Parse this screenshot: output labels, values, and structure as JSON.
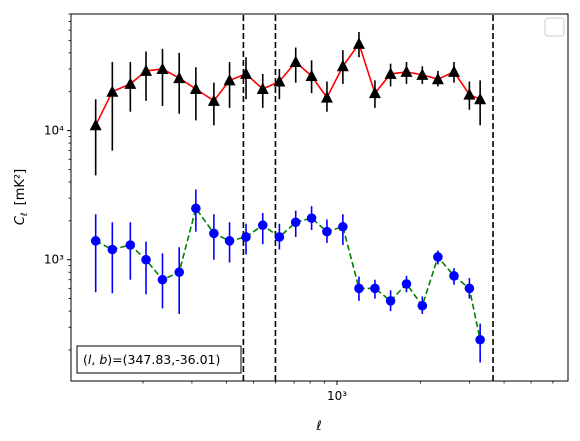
{
  "chart_data": {
    "type": "line",
    "xscale": "log",
    "yscale": "log",
    "xlim": [
      110,
      6800
    ],
    "ylim": [
      115,
      80000
    ],
    "xlabel_symbol": "ℓ",
    "ylabel_symbol": "C",
    "ylabel_subscript": "ℓ",
    "ylabel_unit": "[mK²]",
    "legend": {
      "location": "upper right",
      "entries": []
    },
    "annotation": {
      "text": "(l, b)=(347.83,-36.01)",
      "location": "lower left",
      "boxed": true
    },
    "x_ticks": [
      {
        "value": 1000,
        "label": "10³"
      }
    ],
    "y_ticks": [
      {
        "value": 1000,
        "label": "10³"
      },
      {
        "value": 10000,
        "label": "10⁴"
      }
    ],
    "vertical_lines": [
      {
        "x": 460,
        "style": "dashed",
        "color": "#000000"
      },
      {
        "x": 600,
        "style": "dashed",
        "color": "#000000"
      },
      {
        "x": 3650,
        "style": "dashed",
        "color": "#000000"
      }
    ],
    "series": [
      {
        "line_color": "#ff0000",
        "line_style": "solid",
        "marker": "triangle",
        "marker_color": "#000000",
        "points": [
          {
            "x": 135,
            "y": 11000,
            "lo": 4500,
            "hi": 17500
          },
          {
            "x": 155,
            "y": 20000,
            "lo": 7000,
            "hi": 34000
          },
          {
            "x": 180,
            "y": 23000,
            "lo": 14000,
            "hi": 34000
          },
          {
            "x": 205,
            "y": 29000,
            "lo": 17000,
            "hi": 41000
          },
          {
            "x": 235,
            "y": 30000,
            "lo": 15500,
            "hi": 43000
          },
          {
            "x": 270,
            "y": 25500,
            "lo": 13500,
            "hi": 40000
          },
          {
            "x": 310,
            "y": 21000,
            "lo": 12000,
            "hi": 31000
          },
          {
            "x": 360,
            "y": 17000,
            "lo": 11000,
            "hi": 23500
          },
          {
            "x": 410,
            "y": 24500,
            "lo": 15000,
            "hi": 34000
          },
          {
            "x": 470,
            "y": 27500,
            "lo": 17500,
            "hi": 37000
          },
          {
            "x": 540,
            "y": 21000,
            "lo": 15000,
            "hi": 27500
          },
          {
            "x": 620,
            "y": 24000,
            "lo": 17500,
            "hi": 30000
          },
          {
            "x": 710,
            "y": 34000,
            "lo": 23500,
            "hi": 44000
          },
          {
            "x": 810,
            "y": 26500,
            "lo": 19500,
            "hi": 35000
          },
          {
            "x": 920,
            "y": 18000,
            "lo": 14000,
            "hi": 24000
          },
          {
            "x": 1050,
            "y": 31500,
            "lo": 23000,
            "hi": 42000
          },
          {
            "x": 1200,
            "y": 47000,
            "lo": 37000,
            "hi": 58000
          },
          {
            "x": 1370,
            "y": 19500,
            "lo": 15000,
            "hi": 24500
          },
          {
            "x": 1560,
            "y": 27500,
            "lo": 22000,
            "hi": 33000
          },
          {
            "x": 1780,
            "y": 28500,
            "lo": 23000,
            "hi": 34000
          },
          {
            "x": 2030,
            "y": 27000,
            "lo": 23000,
            "hi": 31500
          },
          {
            "x": 2310,
            "y": 25000,
            "lo": 22000,
            "hi": 29000
          },
          {
            "x": 2640,
            "y": 28500,
            "lo": 23500,
            "hi": 34000
          },
          {
            "x": 3000,
            "y": 19000,
            "lo": 14500,
            "hi": 24000
          },
          {
            "x": 3280,
            "y": 17500,
            "lo": 11000,
            "hi": 24500
          }
        ]
      },
      {
        "line_color": "#008000",
        "line_style": "dashed",
        "marker": "circle",
        "marker_color": "#0000ff",
        "points": [
          {
            "x": 135,
            "y": 1400,
            "lo": 560,
            "hi": 2250
          },
          {
            "x": 155,
            "y": 1200,
            "lo": 550,
            "hi": 1950
          },
          {
            "x": 180,
            "y": 1300,
            "lo": 700,
            "hi": 1950
          },
          {
            "x": 205,
            "y": 1000,
            "lo": 540,
            "hi": 1380
          },
          {
            "x": 235,
            "y": 700,
            "lo": 420,
            "hi": 1120
          },
          {
            "x": 270,
            "y": 800,
            "lo": 380,
            "hi": 1250
          },
          {
            "x": 310,
            "y": 2500,
            "lo": 1650,
            "hi": 3500
          },
          {
            "x": 360,
            "y": 1600,
            "lo": 1000,
            "hi": 2250
          },
          {
            "x": 410,
            "y": 1400,
            "lo": 950,
            "hi": 1950
          },
          {
            "x": 470,
            "y": 1500,
            "lo": 1100,
            "hi": 1900
          },
          {
            "x": 540,
            "y": 1850,
            "lo": 1320,
            "hi": 2300
          },
          {
            "x": 620,
            "y": 1500,
            "lo": 1200,
            "hi": 1900
          },
          {
            "x": 710,
            "y": 1950,
            "lo": 1500,
            "hi": 2400
          },
          {
            "x": 810,
            "y": 2100,
            "lo": 1700,
            "hi": 2600
          },
          {
            "x": 920,
            "y": 1650,
            "lo": 1350,
            "hi": 2050
          },
          {
            "x": 1050,
            "y": 1800,
            "lo": 1300,
            "hi": 2250
          },
          {
            "x": 1200,
            "y": 600,
            "lo": 480,
            "hi": 740
          },
          {
            "x": 1370,
            "y": 600,
            "lo": 500,
            "hi": 700
          },
          {
            "x": 1560,
            "y": 480,
            "lo": 400,
            "hi": 580
          },
          {
            "x": 1780,
            "y": 650,
            "lo": 560,
            "hi": 750
          },
          {
            "x": 2030,
            "y": 440,
            "lo": 380,
            "hi": 520
          },
          {
            "x": 2310,
            "y": 1050,
            "lo": 920,
            "hi": 1180
          },
          {
            "x": 2640,
            "y": 750,
            "lo": 640,
            "hi": 860
          },
          {
            "x": 3000,
            "y": 600,
            "lo": 500,
            "hi": 720
          },
          {
            "x": 3280,
            "y": 240,
            "lo": 160,
            "hi": 320
          }
        ]
      }
    ]
  }
}
